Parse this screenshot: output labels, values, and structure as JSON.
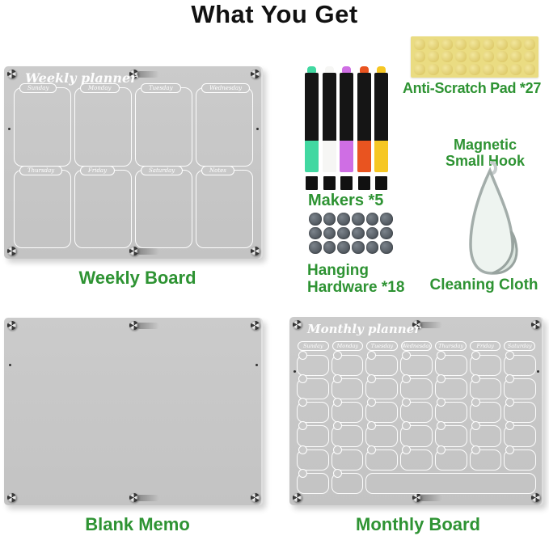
{
  "title": "What You Get",
  "colors": {
    "accent_green": "#2e9333",
    "board_gray": "#c7c7c7",
    "pad_yellow": "#eadc82",
    "magnet_gray": "#565e66"
  },
  "weekly_board": {
    "planner_title": "Weekly planner",
    "day_labels": [
      "Sunday",
      "Monday",
      "Tuesday",
      "Wednesday",
      "Thursday",
      "Friday",
      "Saturday",
      "Notes"
    ],
    "caption": "Weekly Board"
  },
  "markers": {
    "caption": "Makers *5",
    "count": 5,
    "cap_colors": [
      "#41d8a1",
      "#f6f6f4",
      "#cf6ee4",
      "#e95420",
      "#f6c723"
    ]
  },
  "anti_scratch_pad": {
    "caption": "Anti-Scratch Pad *27",
    "rows": 3,
    "cols": 9
  },
  "magnetic_hook": {
    "caption_line1": "Magnetic",
    "caption_line2": "Small Hook"
  },
  "cleaning_cloth": {
    "caption": "Cleaning Cloth"
  },
  "hanging_hardware": {
    "caption_line1": "Hanging",
    "caption_line2": "Hardware *18",
    "rows": 3,
    "cols": 6
  },
  "blank_memo": {
    "caption": "Blank Memo"
  },
  "monthly_board": {
    "planner_title": "Monthly planner",
    "day_labels": [
      "Sunday",
      "Monday",
      "Tuesday",
      "Wednesday",
      "Thursday",
      "Friday",
      "Saturday"
    ],
    "caption": "Monthly Board",
    "week_rows": 6
  }
}
